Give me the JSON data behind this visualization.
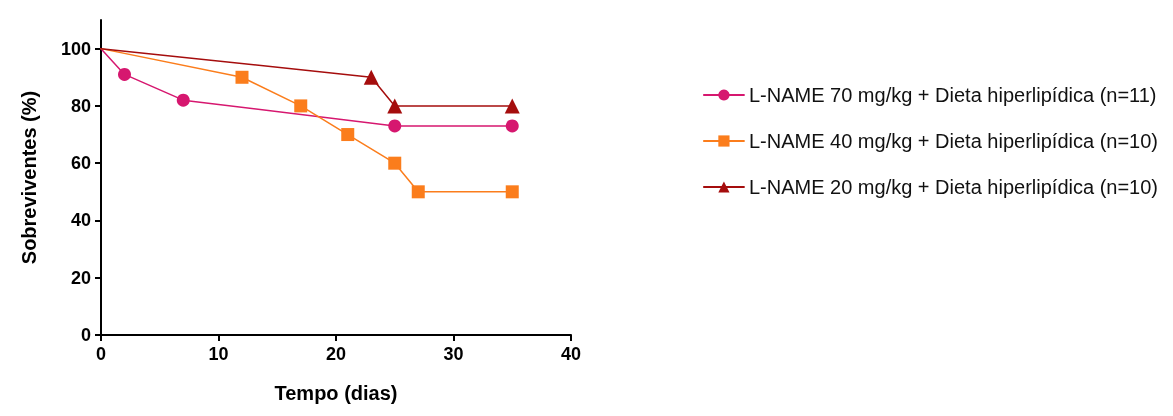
{
  "chart_data": {
    "type": "line",
    "xlabel": "Tempo (dias)",
    "ylabel": "Sobreviventes (%)",
    "xlim": [
      0,
      40
    ],
    "xticks": [
      0,
      10,
      20,
      30,
      40
    ],
    "ylim": [
      0,
      110
    ],
    "yticks": [
      0,
      20,
      40,
      60,
      80,
      100
    ],
    "grid": false,
    "legend": "right",
    "line_style": "solid",
    "series": [
      {
        "name": "L-NAME 70 mg/kg + Dieta hiperlipídica (n=11)",
        "color": "#d6176f",
        "marker": "circle",
        "x": [
          0,
          2,
          7,
          25,
          35
        ],
        "values": [
          100,
          91,
          82,
          73,
          73
        ]
      },
      {
        "name": "L-NAME 40 mg/kg + Dieta hiperlipídica (n=10)",
        "color": "#fb7d1c",
        "marker": "square",
        "x": [
          0,
          12,
          17,
          21,
          25,
          27,
          35
        ],
        "values": [
          100,
          90,
          80,
          70,
          60,
          50,
          50
        ]
      },
      {
        "name": "L-NAME 20 mg/kg + Dieta hiperlipídica (n=10)",
        "color": "#a50d0d",
        "marker": "triangle",
        "x": [
          0,
          23,
          25,
          35
        ],
        "values": [
          100,
          90,
          80,
          80
        ]
      }
    ]
  }
}
